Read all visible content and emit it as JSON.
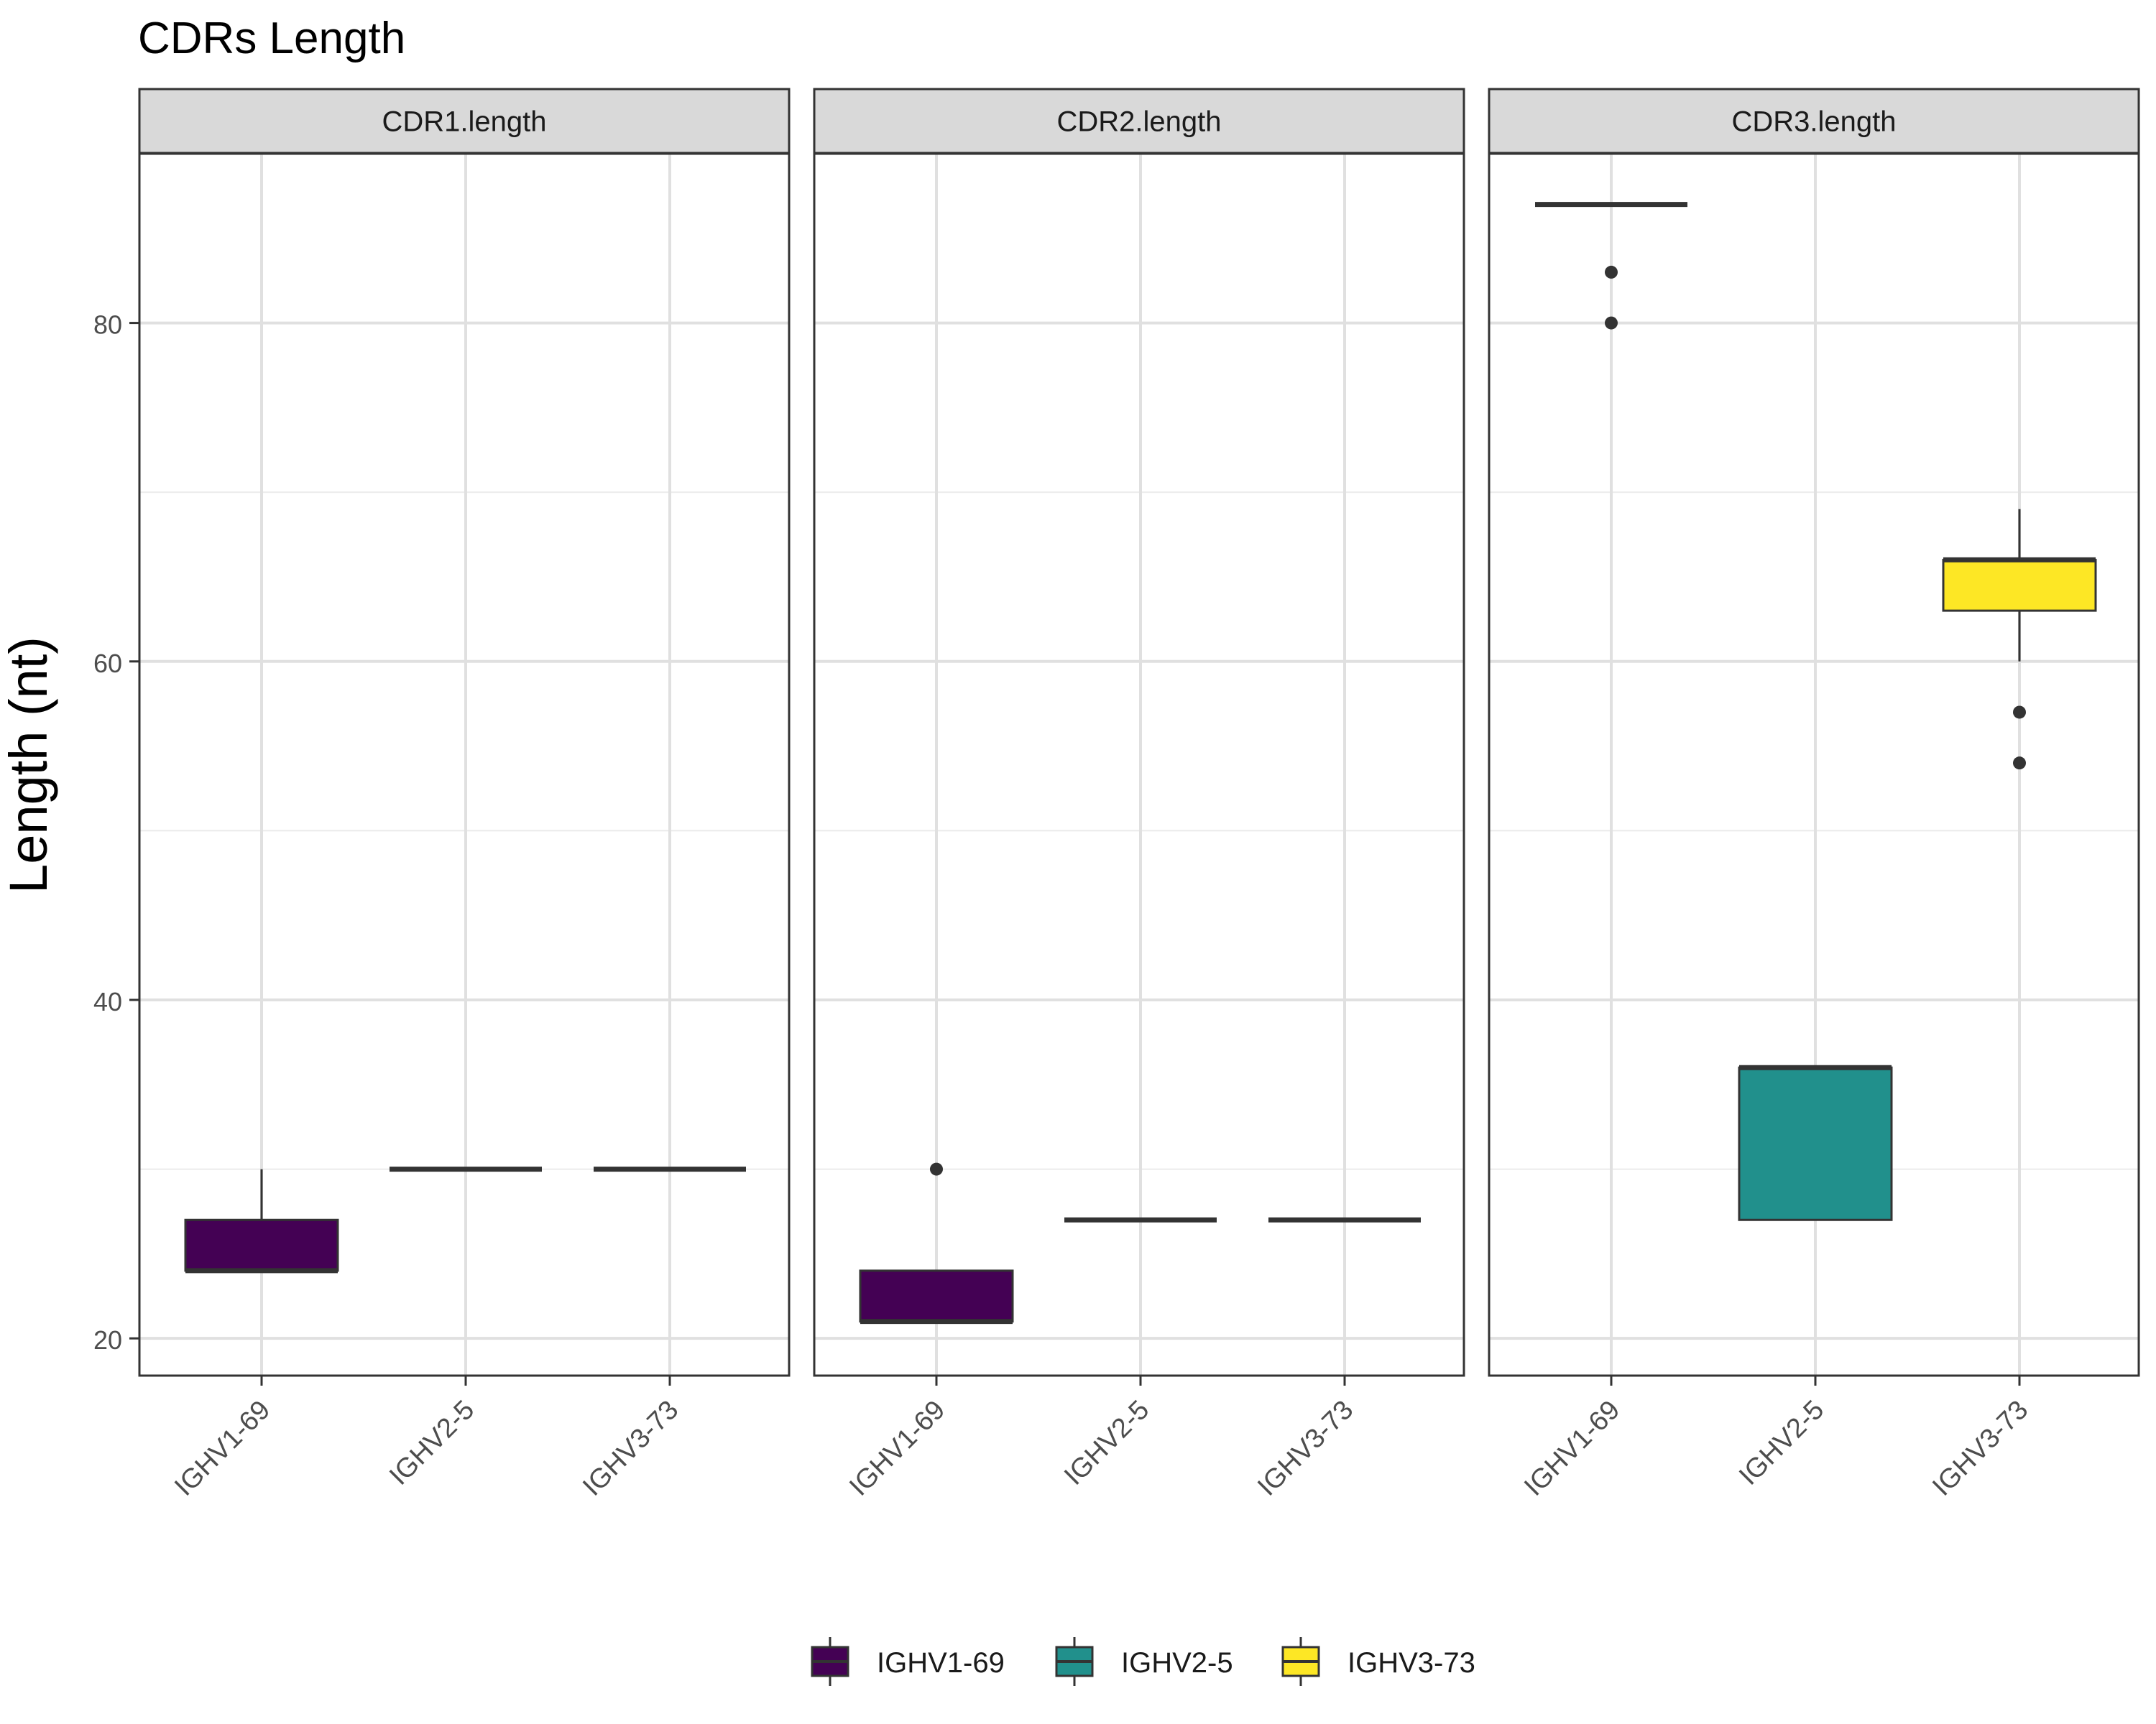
{
  "chart_data": {
    "type": "boxplot",
    "title": "CDRs Length",
    "xlabel": "",
    "ylabel": "Length (nt)",
    "ylim": [
      17.8,
      90
    ],
    "yticks": [
      20,
      40,
      60,
      80
    ],
    "grid": true,
    "legend_position": "bottom",
    "categories": [
      "IGHV1-69",
      "IGHV2-5",
      "IGHV3-73"
    ],
    "colors": {
      "IGHV1-69": "#440154",
      "IGHV2-5": "#21908C",
      "IGHV3-73": "#FDE725"
    },
    "legend": [
      {
        "label": "IGHV1-69",
        "color": "#440154"
      },
      {
        "label": "IGHV2-5",
        "color": "#21908C"
      },
      {
        "label": "IGHV3-73",
        "color": "#FDE725"
      }
    ],
    "facets": [
      {
        "label": "CDR1.length",
        "boxes": [
          {
            "category": "IGHV1-69",
            "lower_whisker": 24,
            "q1": 24,
            "median": 24,
            "q3": 27,
            "upper_whisker": 30,
            "outliers": []
          },
          {
            "category": "IGHV2-5",
            "lower_whisker": 30,
            "q1": 30,
            "median": 30,
            "q3": 30,
            "upper_whisker": 30,
            "outliers": []
          },
          {
            "category": "IGHV3-73",
            "lower_whisker": 30,
            "q1": 30,
            "median": 30,
            "q3": 30,
            "upper_whisker": 30,
            "outliers": []
          }
        ]
      },
      {
        "label": "CDR2.length",
        "boxes": [
          {
            "category": "IGHV1-69",
            "lower_whisker": 21,
            "q1": 21,
            "median": 21,
            "q3": 24,
            "upper_whisker": 24,
            "outliers": [
              30
            ]
          },
          {
            "category": "IGHV2-5",
            "lower_whisker": 27,
            "q1": 27,
            "median": 27,
            "q3": 27,
            "upper_whisker": 27,
            "outliers": []
          },
          {
            "category": "IGHV3-73",
            "lower_whisker": 27,
            "q1": 27,
            "median": 27,
            "q3": 27,
            "upper_whisker": 27,
            "outliers": []
          }
        ]
      },
      {
        "label": "CDR3.length",
        "boxes": [
          {
            "category": "IGHV1-69",
            "lower_whisker": 87,
            "q1": 87,
            "median": 87,
            "q3": 87,
            "upper_whisker": 87,
            "outliers": [
              83,
              80
            ]
          },
          {
            "category": "IGHV2-5",
            "lower_whisker": 27,
            "q1": 27,
            "median": 36,
            "q3": 36,
            "upper_whisker": 36,
            "outliers": []
          },
          {
            "category": "IGHV3-73",
            "lower_whisker": 60,
            "q1": 63,
            "median": 66,
            "q3": 66,
            "upper_whisker": 69,
            "outliers": [
              57,
              54
            ]
          }
        ]
      }
    ]
  }
}
